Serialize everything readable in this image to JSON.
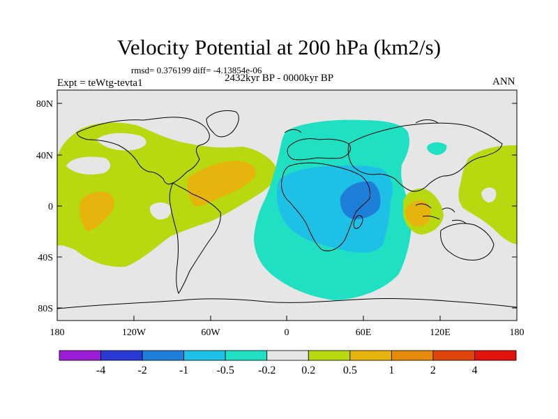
{
  "title": "Velocity Potential at 200 hPa (km2/s)",
  "stats_line": "rmsd= 0.376199 diff= -4.13854e-06",
  "experiment": "Expt = teWtg-tevta1",
  "period": "2432kyr BP - 0000kyr BP",
  "season": "ANN",
  "y_ticks": [
    "80N",
    "40N",
    "0",
    "40S",
    "80S"
  ],
  "x_ticks": [
    "180",
    "120W",
    "60W",
    "0",
    "60E",
    "120E",
    "180"
  ],
  "colorbar": {
    "colors": [
      "#9c1ed9",
      "#2a3ad4",
      "#1e7fd9",
      "#1fc0e6",
      "#20e0c4",
      "#e6e6e6",
      "#b8d80f",
      "#e6b40c",
      "#e68a0c",
      "#e0460c",
      "#e3120c"
    ],
    "labels": [
      "-4",
      "-2",
      "-1",
      "-0.5",
      "-0.2",
      "0.2",
      "0.5",
      "1",
      "2",
      "4"
    ]
  },
  "colors": {
    "background": "#e6e6e6",
    "level_pos_0_2": "#b8d80f",
    "level_pos_0_5": "#e6b40c",
    "level_neg_0_2": "#20e0c4",
    "level_neg_0_5": "#1fc0e6",
    "level_neg_1": "#1e7fd9"
  }
}
